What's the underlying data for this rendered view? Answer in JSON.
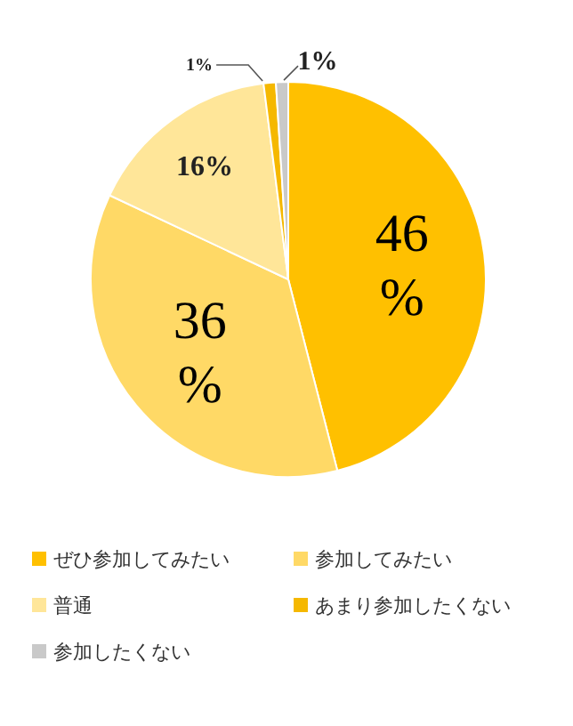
{
  "chart_data": {
    "type": "pie",
    "categories": [
      "ぜひ参加してみたい",
      "参加してみたい",
      "普通",
      "あまり参加したくない",
      "参加したくない"
    ],
    "values": [
      46,
      36,
      16,
      1,
      1
    ],
    "colors": [
      "#ffc000",
      "#ffd966",
      "#ffe699",
      "#f5b800",
      "#c9c9c9"
    ],
    "value_labels": [
      "46%",
      "36%",
      "16%",
      "1%",
      "1%"
    ],
    "legend": "bottom"
  }
}
